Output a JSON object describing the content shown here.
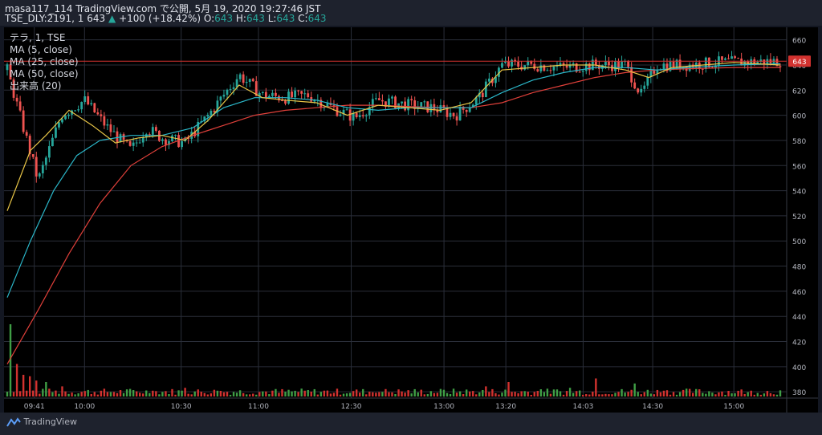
{
  "header": {
    "line1": "masa117_114 TradingView.com で公開, 5月 19, 2020 19:27:46 JST",
    "symbol": "TSE_DLY:2191, 1",
    "price": "643",
    "change": "+100 (+18.42%)",
    "ohlc": {
      "O": "643",
      "H": "643",
      "L": "643",
      "C": "643"
    }
  },
  "legend": {
    "series": "テラ, 1, TSE",
    "ma5": "MA (5, close)",
    "ma25": "MA (25, close)",
    "ma50": "MA (50, close)",
    "volume": "出来高 (20)"
  },
  "footer": {
    "brand": "TradingView"
  },
  "colors": {
    "up": "#26a69a",
    "down": "#ef5350",
    "ma5": "#e8c547",
    "ma25": "#2bb7c9",
    "ma50": "#e0403a",
    "volUp": "#3f9e45",
    "volDown": "#d2322f",
    "price_line": "#d2322f",
    "grid": "#2a2e39",
    "axis_text": "#b2b5be"
  },
  "chart_data": {
    "type": "candlestick",
    "title": "テラ, 1, TSE",
    "ylim": [
      375,
      670
    ],
    "yticks": [
      380,
      400,
      420,
      440,
      460,
      480,
      500,
      520,
      540,
      560,
      580,
      600,
      620,
      640,
      660
    ],
    "xticks": [
      "09:41",
      "10:00",
      "10:30",
      "11:00",
      "12:30",
      "13:00",
      "13:20",
      "14:03",
      "14:30",
      "15:00"
    ],
    "last_price": 643,
    "price_series": [
      {
        "t": 0,
        "p": 636
      },
      {
        "t": 0.04,
        "p": 548
      },
      {
        "t": 0.07,
        "p": 600
      },
      {
        "t": 0.1,
        "p": 612
      },
      {
        "t": 0.13,
        "p": 590
      },
      {
        "t": 0.16,
        "p": 572
      },
      {
        "t": 0.18,
        "p": 590
      },
      {
        "t": 0.2,
        "p": 582
      },
      {
        "t": 0.23,
        "p": 578
      },
      {
        "t": 0.26,
        "p": 600
      },
      {
        "t": 0.3,
        "p": 632
      },
      {
        "t": 0.33,
        "p": 616
      },
      {
        "t": 0.36,
        "p": 614
      },
      {
        "t": 0.39,
        "p": 616
      },
      {
        "t": 0.42,
        "p": 606
      },
      {
        "t": 0.45,
        "p": 598
      },
      {
        "t": 0.48,
        "p": 612
      },
      {
        "t": 0.52,
        "p": 608
      },
      {
        "t": 0.55,
        "p": 606
      },
      {
        "t": 0.58,
        "p": 600
      },
      {
        "t": 0.61,
        "p": 614
      },
      {
        "t": 0.64,
        "p": 640
      },
      {
        "t": 0.68,
        "p": 640
      },
      {
        "t": 0.72,
        "p": 638
      },
      {
        "t": 0.76,
        "p": 640
      },
      {
        "t": 0.8,
        "p": 640
      },
      {
        "t": 0.82,
        "p": 616
      },
      {
        "t": 0.84,
        "p": 640
      },
      {
        "t": 0.88,
        "p": 640
      },
      {
        "t": 0.92,
        "p": 642
      },
      {
        "t": 1,
        "p": 643
      }
    ],
    "ma5": [
      {
        "t": 0,
        "p": 524
      },
      {
        "t": 0.03,
        "p": 572
      },
      {
        "t": 0.05,
        "p": 584
      },
      {
        "t": 0.08,
        "p": 604
      },
      {
        "t": 0.11,
        "p": 592
      },
      {
        "t": 0.14,
        "p": 578
      },
      {
        "t": 0.17,
        "p": 582
      },
      {
        "t": 0.2,
        "p": 584
      },
      {
        "t": 0.23,
        "p": 580
      },
      {
        "t": 0.26,
        "p": 596
      },
      {
        "t": 0.3,
        "p": 624
      },
      {
        "t": 0.33,
        "p": 614
      },
      {
        "t": 0.36,
        "p": 612
      },
      {
        "t": 0.4,
        "p": 610
      },
      {
        "t": 0.44,
        "p": 600
      },
      {
        "t": 0.48,
        "p": 608
      },
      {
        "t": 0.52,
        "p": 606
      },
      {
        "t": 0.56,
        "p": 604
      },
      {
        "t": 0.6,
        "p": 610
      },
      {
        "t": 0.64,
        "p": 636
      },
      {
        "t": 0.68,
        "p": 638
      },
      {
        "t": 0.72,
        "p": 640
      },
      {
        "t": 0.76,
        "p": 640
      },
      {
        "t": 0.8,
        "p": 636
      },
      {
        "t": 0.83,
        "p": 630
      },
      {
        "t": 0.86,
        "p": 638
      },
      {
        "t": 0.9,
        "p": 640
      },
      {
        "t": 0.94,
        "p": 642
      },
      {
        "t": 1,
        "p": 640
      }
    ],
    "ma25": [
      {
        "t": 0,
        "p": 455
      },
      {
        "t": 0.03,
        "p": 500
      },
      {
        "t": 0.06,
        "p": 540
      },
      {
        "t": 0.09,
        "p": 568
      },
      {
        "t": 0.12,
        "p": 580
      },
      {
        "t": 0.16,
        "p": 584
      },
      {
        "t": 0.2,
        "p": 584
      },
      {
        "t": 0.24,
        "p": 590
      },
      {
        "t": 0.28,
        "p": 606
      },
      {
        "t": 0.32,
        "p": 614
      },
      {
        "t": 0.36,
        "p": 614
      },
      {
        "t": 0.4,
        "p": 612
      },
      {
        "t": 0.44,
        "p": 606
      },
      {
        "t": 0.48,
        "p": 604
      },
      {
        "t": 0.52,
        "p": 606
      },
      {
        "t": 0.56,
        "p": 606
      },
      {
        "t": 0.6,
        "p": 606
      },
      {
        "t": 0.64,
        "p": 618
      },
      {
        "t": 0.68,
        "p": 628
      },
      {
        "t": 0.72,
        "p": 634
      },
      {
        "t": 0.76,
        "p": 638
      },
      {
        "t": 0.8,
        "p": 638
      },
      {
        "t": 0.84,
        "p": 636
      },
      {
        "t": 0.88,
        "p": 638
      },
      {
        "t": 0.94,
        "p": 640
      },
      {
        "t": 1,
        "p": 641
      }
    ],
    "ma50": [
      {
        "t": 0,
        "p": 402
      },
      {
        "t": 0.04,
        "p": 445
      },
      {
        "t": 0.08,
        "p": 490
      },
      {
        "t": 0.12,
        "p": 530
      },
      {
        "t": 0.16,
        "p": 560
      },
      {
        "t": 0.2,
        "p": 575
      },
      {
        "t": 0.24,
        "p": 584
      },
      {
        "t": 0.28,
        "p": 592
      },
      {
        "t": 0.32,
        "p": 600
      },
      {
        "t": 0.36,
        "p": 604
      },
      {
        "t": 0.4,
        "p": 606
      },
      {
        "t": 0.44,
        "p": 608
      },
      {
        "t": 0.48,
        "p": 608
      },
      {
        "t": 0.52,
        "p": 607
      },
      {
        "t": 0.56,
        "p": 606
      },
      {
        "t": 0.6,
        "p": 606
      },
      {
        "t": 0.64,
        "p": 610
      },
      {
        "t": 0.68,
        "p": 618
      },
      {
        "t": 0.72,
        "p": 624
      },
      {
        "t": 0.76,
        "p": 630
      },
      {
        "t": 0.8,
        "p": 634
      },
      {
        "t": 0.84,
        "p": 636
      },
      {
        "t": 0.88,
        "p": 637
      },
      {
        "t": 0.94,
        "p": 638
      },
      {
        "t": 1,
        "p": 638
      }
    ],
    "volume_spikes": [
      {
        "t": 0.005,
        "v": 1.0,
        "up": true
      },
      {
        "t": 0.012,
        "v": 0.45,
        "up": false
      },
      {
        "t": 0.02,
        "v": 0.3,
        "up": false
      },
      {
        "t": 0.028,
        "v": 0.28,
        "up": false
      },
      {
        "t": 0.036,
        "v": 0.22,
        "up": false
      },
      {
        "t": 0.05,
        "v": 0.2,
        "up": true
      },
      {
        "t": 0.07,
        "v": 0.14,
        "up": false
      },
      {
        "t": 0.09,
        "v": 0.12,
        "up": true
      },
      {
        "t": 0.12,
        "v": 0.08,
        "up": false
      },
      {
        "t": 0.19,
        "v": 0.08,
        "up": false
      },
      {
        "t": 0.23,
        "v": 0.12,
        "up": false
      },
      {
        "t": 0.27,
        "v": 0.08,
        "up": true
      },
      {
        "t": 0.35,
        "v": 0.05,
        "up": false
      },
      {
        "t": 0.48,
        "v": 0.06,
        "up": false
      },
      {
        "t": 0.62,
        "v": 0.14,
        "up": false
      },
      {
        "t": 0.65,
        "v": 0.2,
        "up": false
      },
      {
        "t": 0.69,
        "v": 0.1,
        "up": true
      },
      {
        "t": 0.73,
        "v": 0.12,
        "up": true
      },
      {
        "t": 0.76,
        "v": 0.25,
        "up": false
      },
      {
        "t": 0.81,
        "v": 0.18,
        "up": true
      },
      {
        "t": 0.85,
        "v": 0.08,
        "up": false
      },
      {
        "t": 0.9,
        "v": 0.05,
        "up": true
      },
      {
        "t": 0.96,
        "v": 0.06,
        "up": true
      }
    ]
  }
}
